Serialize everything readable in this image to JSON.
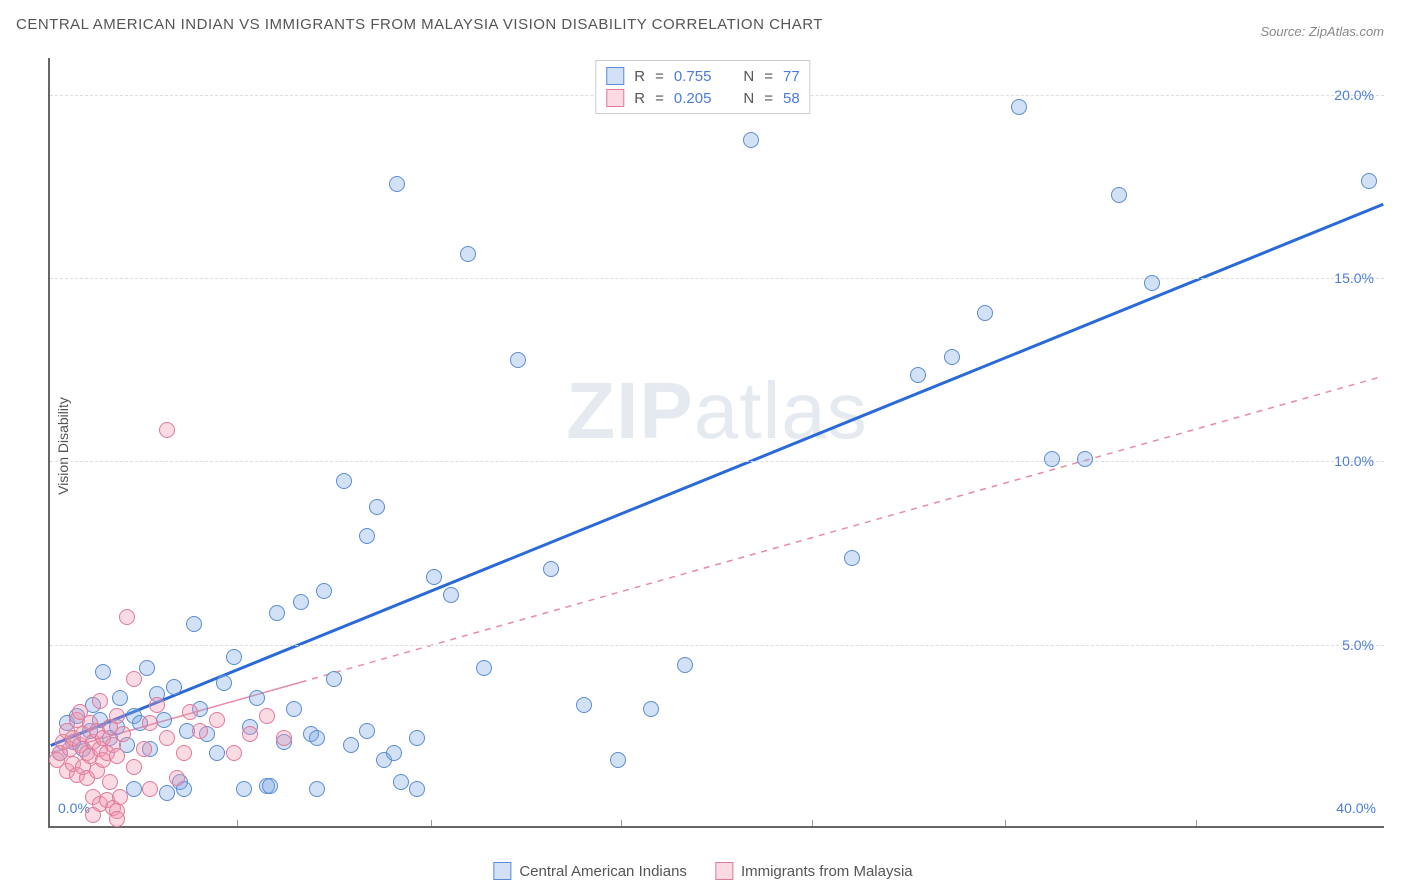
{
  "title": "CENTRAL AMERICAN INDIAN VS IMMIGRANTS FROM MALAYSIA VISION DISABILITY CORRELATION CHART",
  "source": "Source: ZipAtlas.com",
  "ylabel": "Vision Disability",
  "watermark_a": "ZIP",
  "watermark_b": "atlas",
  "chart": {
    "type": "scatter",
    "xlim": [
      0,
      40
    ],
    "ylim": [
      0,
      21
    ],
    "ytick_step": 5,
    "ytick_labels": [
      "5.0%",
      "10.0%",
      "15.0%",
      "20.0%"
    ],
    "ytick_values": [
      5,
      10,
      15,
      20
    ],
    "xtick_labels": [
      "0.0%",
      "40.0%"
    ],
    "xtick_values": [
      0,
      40
    ],
    "xtick_minor": [
      5.6,
      11.4,
      17.1,
      22.8,
      28.6,
      34.3
    ],
    "background_color": "#ffffff",
    "grid_color": "#dddddd",
    "axis_color": "#666666",
    "tick_label_color": "#4a7dd8",
    "marker_radius": 8,
    "marker_stroke_width": 1.2,
    "series": [
      {
        "name": "Central American Indians",
        "fill": "rgba(127,168,228,0.35)",
        "stroke": "#5a8cd5",
        "r": 0.755,
        "n": 77,
        "regression": {
          "x1": 0,
          "y1": 2.2,
          "x2": 40,
          "y2": 17.0,
          "stroke": "#2a6ad8",
          "width": 3,
          "dash": "none",
          "solid_until_x": 40
        },
        "points": [
          [
            0.3,
            2.0
          ],
          [
            0.5,
            2.8
          ],
          [
            0.7,
            2.3
          ],
          [
            0.8,
            3.0
          ],
          [
            1.0,
            2.1
          ],
          [
            1.2,
            2.6
          ],
          [
            1.3,
            3.3
          ],
          [
            1.5,
            2.9
          ],
          [
            1.6,
            4.2
          ],
          [
            1.8,
            2.4
          ],
          [
            2.0,
            2.7
          ],
          [
            2.1,
            3.5
          ],
          [
            2.3,
            2.2
          ],
          [
            2.5,
            3.0
          ],
          [
            2.5,
            1.0
          ],
          [
            2.7,
            2.8
          ],
          [
            2.9,
            4.3
          ],
          [
            3.0,
            2.1
          ],
          [
            3.2,
            3.6
          ],
          [
            3.4,
            2.9
          ],
          [
            3.5,
            0.9
          ],
          [
            3.7,
            3.8
          ],
          [
            3.9,
            1.2
          ],
          [
            4.1,
            2.6
          ],
          [
            4.3,
            5.5
          ],
          [
            4.5,
            3.2
          ],
          [
            4.7,
            2.5
          ],
          [
            5.0,
            2.0
          ],
          [
            5.2,
            3.9
          ],
          [
            5.5,
            4.6
          ],
          [
            5.8,
            1.0
          ],
          [
            6.0,
            2.7
          ],
          [
            6.2,
            3.5
          ],
          [
            6.5,
            1.1
          ],
          [
            6.8,
            5.8
          ],
          [
            7.0,
            2.3
          ],
          [
            7.3,
            3.2
          ],
          [
            7.5,
            6.1
          ],
          [
            7.8,
            2.5
          ],
          [
            8.0,
            2.4
          ],
          [
            8.2,
            6.4
          ],
          [
            8.5,
            4.0
          ],
          [
            8.8,
            9.4
          ],
          [
            9.0,
            2.2
          ],
          [
            9.5,
            7.9
          ],
          [
            9.5,
            2.6
          ],
          [
            9.8,
            8.7
          ],
          [
            10.0,
            1.8
          ],
          [
            10.3,
            2.0
          ],
          [
            10.4,
            17.5
          ],
          [
            10.5,
            1.2
          ],
          [
            11.0,
            2.4
          ],
          [
            11.5,
            6.8
          ],
          [
            12.0,
            6.3
          ],
          [
            12.5,
            15.6
          ],
          [
            13.0,
            4.3
          ],
          [
            14.0,
            12.7
          ],
          [
            15.0,
            7.0
          ],
          [
            16.0,
            3.3
          ],
          [
            17.0,
            1.8
          ],
          [
            18.0,
            3.2
          ],
          [
            19.0,
            4.4
          ],
          [
            21.0,
            18.7
          ],
          [
            24.0,
            7.3
          ],
          [
            26.0,
            12.3
          ],
          [
            27.0,
            12.8
          ],
          [
            28.0,
            14.0
          ],
          [
            29.0,
            19.6
          ],
          [
            30.0,
            10.0
          ],
          [
            31.0,
            10.0
          ],
          [
            32.0,
            17.2
          ],
          [
            33.0,
            14.8
          ],
          [
            39.5,
            17.6
          ],
          [
            4.0,
            1.0
          ],
          [
            6.6,
            1.1
          ],
          [
            8.0,
            1.0
          ],
          [
            11.0,
            1.0
          ]
        ]
      },
      {
        "name": "Immigrants from Malaysia",
        "fill": "rgba(240,150,175,0.35)",
        "stroke": "#df7a9a",
        "r": 0.205,
        "n": 58,
        "regression": {
          "x1": 0,
          "y1": 2.0,
          "x2": 40,
          "y2": 12.3,
          "stroke": "#e88aa5",
          "width": 1.5,
          "dash": "6,6",
          "solid_until_x": 7.5
        },
        "points": [
          [
            0.2,
            1.8
          ],
          [
            0.3,
            2.0
          ],
          [
            0.4,
            2.3
          ],
          [
            0.5,
            1.5
          ],
          [
            0.5,
            2.6
          ],
          [
            0.6,
            2.1
          ],
          [
            0.7,
            1.7
          ],
          [
            0.7,
            2.4
          ],
          [
            0.8,
            2.9
          ],
          [
            0.8,
            1.4
          ],
          [
            0.9,
            2.2
          ],
          [
            0.9,
            3.1
          ],
          [
            1.0,
            1.6
          ],
          [
            1.0,
            2.5
          ],
          [
            1.1,
            2.0
          ],
          [
            1.1,
            1.3
          ],
          [
            1.2,
            2.8
          ],
          [
            1.2,
            1.9
          ],
          [
            1.3,
            2.3
          ],
          [
            1.3,
            0.8
          ],
          [
            1.4,
            2.6
          ],
          [
            1.4,
            1.5
          ],
          [
            1.5,
            2.1
          ],
          [
            1.5,
            3.4
          ],
          [
            1.5,
            0.6
          ],
          [
            1.6,
            1.8
          ],
          [
            1.6,
            2.4
          ],
          [
            1.7,
            0.7
          ],
          [
            1.7,
            2.0
          ],
          [
            1.8,
            2.7
          ],
          [
            1.8,
            1.2
          ],
          [
            1.9,
            0.5
          ],
          [
            1.9,
            2.2
          ],
          [
            2.0,
            0.4
          ],
          [
            2.0,
            1.9
          ],
          [
            2.0,
            3.0
          ],
          [
            2.1,
            0.8
          ],
          [
            2.2,
            2.5
          ],
          [
            2.3,
            5.7
          ],
          [
            2.5,
            1.6
          ],
          [
            2.5,
            4.0
          ],
          [
            2.8,
            2.1
          ],
          [
            3.0,
            2.8
          ],
          [
            3.0,
            1.0
          ],
          [
            3.2,
            3.3
          ],
          [
            3.5,
            2.4
          ],
          [
            3.5,
            10.8
          ],
          [
            3.8,
            1.3
          ],
          [
            4.0,
            2.0
          ],
          [
            4.2,
            3.1
          ],
          [
            4.5,
            2.6
          ],
          [
            5.0,
            2.9
          ],
          [
            5.5,
            2.0
          ],
          [
            6.0,
            2.5
          ],
          [
            6.5,
            3.0
          ],
          [
            7.0,
            2.4
          ],
          [
            2.0,
            0.2
          ],
          [
            1.3,
            0.3
          ]
        ]
      }
    ]
  },
  "legend_top": {
    "r_label": "R",
    "n_label": "N",
    "eq": "="
  },
  "legend_bottom": {
    "items": [
      "Central American Indians",
      "Immigrants from Malaysia"
    ]
  }
}
